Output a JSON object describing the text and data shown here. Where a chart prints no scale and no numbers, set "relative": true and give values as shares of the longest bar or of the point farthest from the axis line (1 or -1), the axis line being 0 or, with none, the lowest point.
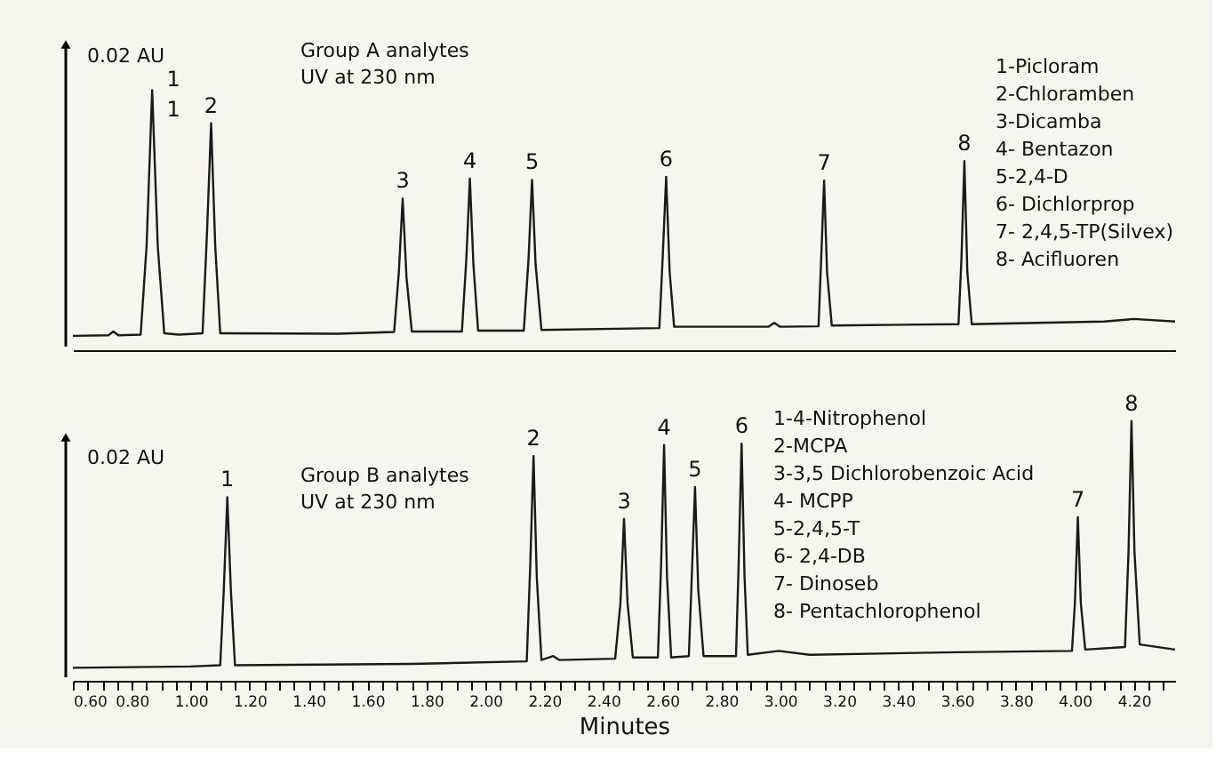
{
  "chart_data": [
    {
      "type": "line",
      "relative": true,
      "ylabel": "0.02 AU",
      "xlim": [
        0.6,
        4.34
      ],
      "tick_labels": false,
      "x": [
        0.6,
        0.72,
        0.737,
        0.755,
        0.83,
        0.85,
        0.869,
        0.888,
        0.91,
        0.96,
        1.04,
        1.055,
        1.069,
        1.083,
        1.1,
        1.5,
        1.69,
        1.706,
        1.719,
        1.732,
        1.75,
        1.92,
        1.935,
        1.947,
        1.959,
        1.975,
        2.13,
        2.146,
        2.158,
        2.17,
        2.19,
        2.59,
        2.601,
        2.613,
        2.625,
        2.64,
        2.96,
        2.98,
        3.0,
        3.13,
        3.139,
        3.149,
        3.159,
        3.175,
        3.605,
        3.615,
        3.625,
        3.635,
        3.65,
        4.1,
        4.2,
        4.34
      ],
      "series": [
        {
          "color": "#1a1a1a",
          "values": [
            0.055,
            0.057,
            0.072,
            0.057,
            0.06,
            0.4,
            1.0,
            0.4,
            0.065,
            0.06,
            0.065,
            0.45,
            0.873,
            0.4,
            0.065,
            0.063,
            0.07,
            0.3,
            0.583,
            0.28,
            0.072,
            0.072,
            0.35,
            0.66,
            0.33,
            0.075,
            0.075,
            0.35,
            0.655,
            0.33,
            0.078,
            0.085,
            0.35,
            0.667,
            0.3,
            0.09,
            0.09,
            0.105,
            0.09,
            0.092,
            0.35,
            0.652,
            0.3,
            0.095,
            0.1,
            0.35,
            0.727,
            0.3,
            0.1,
            0.11,
            0.12,
            0.11
          ]
        }
      ],
      "annotations": [
        "Group A analytes",
        "UV at 230 nm",
        "1-Picloram",
        "2-Chloramben",
        "3-Dicamba",
        "4- Bentazon",
        "5-2,4-D",
        "6- Dichlorprop",
        "7- 2,4,5-TP(Silvex)",
        "8- Acifluoren",
        {
          "text": "1",
          "x": 0.869,
          "y": 1.0
        },
        {
          "text": "1",
          "x": 0.869,
          "y": 1.0
        },
        {
          "text": "2",
          "x": 1.069,
          "y": 0.873
        },
        {
          "text": "3",
          "x": 1.719,
          "y": 0.583
        },
        {
          "text": "4",
          "x": 1.947,
          "y": 0.66
        },
        {
          "text": "5",
          "x": 2.158,
          "y": 0.655
        },
        {
          "text": "6",
          "x": 2.613,
          "y": 0.667
        },
        {
          "text": "7",
          "x": 3.149,
          "y": 0.652
        },
        {
          "text": "8",
          "x": 3.625,
          "y": 0.727
        }
      ]
    },
    {
      "type": "line",
      "relative": true,
      "ylabel": "0.02 AU",
      "xlabel": "Minutes",
      "xlim": [
        0.6,
        4.34
      ],
      "tick_labels": "x",
      "xticks": [
        {
          "value": 0.6,
          "label": "0.60"
        },
        {
          "value": 0.65,
          "label": null
        },
        {
          "value": 0.7,
          "label": null
        },
        {
          "value": 0.75,
          "label": null
        },
        {
          "value": 0.8,
          "label": "0.80"
        },
        {
          "value": 0.85,
          "label": null
        },
        {
          "value": 0.9,
          "label": null
        },
        {
          "value": 0.95,
          "label": null
        },
        {
          "value": 1.0,
          "label": "1.00"
        },
        {
          "value": 1.05,
          "label": null
        },
        {
          "value": 1.1,
          "label": null
        },
        {
          "value": 1.15,
          "label": null
        },
        {
          "value": 1.2,
          "label": "1.20"
        },
        {
          "value": 1.25,
          "label": null
        },
        {
          "value": 1.3,
          "label": null
        },
        {
          "value": 1.35,
          "label": null
        },
        {
          "value": 1.4,
          "label": "1.40"
        },
        {
          "value": 1.45,
          "label": null
        },
        {
          "value": 1.5,
          "label": null
        },
        {
          "value": 1.55,
          "label": null
        },
        {
          "value": 1.6,
          "label": "1.60"
        },
        {
          "value": 1.65,
          "label": null
        },
        {
          "value": 1.7,
          "label": null
        },
        {
          "value": 1.75,
          "label": null
        },
        {
          "value": 1.8,
          "label": "1.80"
        },
        {
          "value": 1.85,
          "label": null
        },
        {
          "value": 1.9,
          "label": null
        },
        {
          "value": 1.95,
          "label": null
        },
        {
          "value": 2.0,
          "label": "2.00"
        },
        {
          "value": 2.05,
          "label": null
        },
        {
          "value": 2.1,
          "label": null
        },
        {
          "value": 2.15,
          "label": null
        },
        {
          "value": 2.2,
          "label": "2.20"
        },
        {
          "value": 2.25,
          "label": null
        },
        {
          "value": 2.3,
          "label": null
        },
        {
          "value": 2.35,
          "label": null
        },
        {
          "value": 2.4,
          "label": "2.40"
        },
        {
          "value": 2.45,
          "label": null
        },
        {
          "value": 2.5,
          "label": null
        },
        {
          "value": 2.55,
          "label": null
        },
        {
          "value": 2.6,
          "label": "2.60"
        },
        {
          "value": 2.65,
          "label": null
        },
        {
          "value": 2.7,
          "label": null
        },
        {
          "value": 2.75,
          "label": null
        },
        {
          "value": 2.8,
          "label": "2.80"
        },
        {
          "value": 2.85,
          "label": null
        },
        {
          "value": 2.9,
          "label": null
        },
        {
          "value": 2.95,
          "label": null
        },
        {
          "value": 3.0,
          "label": "3.00"
        },
        {
          "value": 3.05,
          "label": null
        },
        {
          "value": 3.1,
          "label": null
        },
        {
          "value": 3.15,
          "label": null
        },
        {
          "value": 3.2,
          "label": "3.20"
        },
        {
          "value": 3.25,
          "label": null
        },
        {
          "value": 3.3,
          "label": null
        },
        {
          "value": 3.35,
          "label": null
        },
        {
          "value": 3.4,
          "label": "3.40"
        },
        {
          "value": 3.45,
          "label": null
        },
        {
          "value": 3.5,
          "label": null
        },
        {
          "value": 3.55,
          "label": null
        },
        {
          "value": 3.6,
          "label": "3.60"
        },
        {
          "value": 3.65,
          "label": null
        },
        {
          "value": 3.7,
          "label": null
        },
        {
          "value": 3.75,
          "label": null
        },
        {
          "value": 3.8,
          "label": "3.80"
        },
        {
          "value": 3.85,
          "label": null
        },
        {
          "value": 3.9,
          "label": null
        },
        {
          "value": 3.95,
          "label": null
        },
        {
          "value": 4.0,
          "label": "4.00"
        },
        {
          "value": 4.05,
          "label": null
        },
        {
          "value": 4.1,
          "label": null
        },
        {
          "value": 4.15,
          "label": null
        },
        {
          "value": 4.2,
          "label": "4.20"
        },
        {
          "value": 4.25,
          "label": null
        },
        {
          "value": 4.3,
          "label": null
        }
      ],
      "x": [
        0.6,
        1.0,
        1.1,
        1.112,
        1.124,
        1.136,
        1.15,
        1.75,
        2.14,
        2.152,
        2.163,
        2.174,
        2.19,
        2.23,
        2.25,
        2.44,
        2.458,
        2.47,
        2.482,
        2.5,
        2.585,
        2.596,
        2.606,
        2.616,
        2.63,
        2.69,
        2.7,
        2.711,
        2.722,
        2.74,
        2.85,
        2.859,
        2.869,
        2.879,
        2.89,
        2.995,
        3.1,
        3.6,
        3.99,
        4.0,
        4.01,
        4.02,
        4.035,
        4.17,
        4.182,
        4.192,
        4.202,
        4.22,
        4.34
      ],
      "series": [
        {
          "color": "#1a1a1a",
          "values": [
            0.05,
            0.055,
            0.06,
            0.35,
            0.707,
            0.35,
            0.06,
            0.065,
            0.075,
            0.45,
            0.865,
            0.4,
            0.08,
            0.095,
            0.08,
            0.085,
            0.3,
            0.624,
            0.3,
            0.09,
            0.09,
            0.45,
            0.908,
            0.4,
            0.09,
            0.095,
            0.4,
            0.746,
            0.35,
            0.095,
            0.095,
            0.45,
            0.913,
            0.4,
            0.1,
            0.115,
            0.1,
            0.11,
            0.115,
            0.3,
            0.63,
            0.3,
            0.12,
            0.13,
            0.5,
            1.0,
            0.5,
            0.14,
            0.12
          ]
        }
      ],
      "annotations": [
        "Group B analytes",
        "UV at 230 nm",
        "1-4-Nitrophenol",
        "2-MCPA",
        "3-3,5 Dichlorobenzoic Acid",
        "4- MCPP",
        "5-2,4,5-T",
        "6- 2,4-DB",
        "7- Dinoseb",
        "8- Pentachlorophenol",
        {
          "text": "1",
          "x": 1.124,
          "y": 0.707
        },
        {
          "text": "2",
          "x": 2.163,
          "y": 0.865
        },
        {
          "text": "3",
          "x": 2.47,
          "y": 0.624
        },
        {
          "text": "4",
          "x": 2.606,
          "y": 0.908
        },
        {
          "text": "5",
          "x": 2.711,
          "y": 0.746
        },
        {
          "text": "6",
          "x": 2.869,
          "y": 0.913
        },
        {
          "text": "7",
          "x": 4.01,
          "y": 0.63
        },
        {
          "text": "8",
          "x": 4.192,
          "y": 1.0
        }
      ]
    }
  ]
}
